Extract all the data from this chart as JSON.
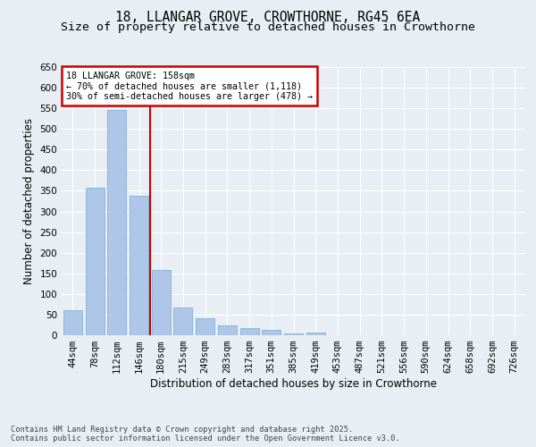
{
  "title_line1": "18, LLANGAR GROVE, CROWTHORNE, RG45 6EA",
  "title_line2": "Size of property relative to detached houses in Crowthorne",
  "xlabel": "Distribution of detached houses by size in Crowthorne",
  "ylabel": "Number of detached properties",
  "footer_line1": "Contains HM Land Registry data © Crown copyright and database right 2025.",
  "footer_line2": "Contains public sector information licensed under the Open Government Licence v3.0.",
  "bin_labels": [
    "44sqm",
    "78sqm",
    "112sqm",
    "146sqm",
    "180sqm",
    "215sqm",
    "249sqm",
    "283sqm",
    "317sqm",
    "351sqm",
    "385sqm",
    "419sqm",
    "453sqm",
    "487sqm",
    "521sqm",
    "556sqm",
    "590sqm",
    "624sqm",
    "658sqm",
    "692sqm",
    "726sqm"
  ],
  "bar_values": [
    60,
    357,
    545,
    338,
    158,
    68,
    42,
    24,
    18,
    14,
    5,
    6,
    0,
    0,
    0,
    0,
    0,
    0,
    0,
    0,
    0
  ],
  "bar_color": "#aec6e8",
  "bar_edge_color": "#7fb3d3",
  "property_size_idx": 3.5,
  "vline_color": "#cc0000",
  "annotation_title": "18 LLANGAR GROVE: 158sqm",
  "annotation_line2": "← 70% of detached houses are smaller (1,118)",
  "annotation_line3": "30% of semi-detached houses are larger (478) →",
  "annotation_box_color": "#cc0000",
  "annotation_bg": "#ffffff",
  "ylim": [
    0,
    650
  ],
  "yticks": [
    0,
    50,
    100,
    150,
    200,
    250,
    300,
    350,
    400,
    450,
    500,
    550,
    600,
    650
  ],
  "bg_color": "#e8eef4",
  "grid_color": "#ffffff",
  "title_fontsize": 10.5,
  "subtitle_fontsize": 9.5,
  "axis_label_fontsize": 8.5,
  "tick_fontsize": 7.5,
  "ylabel_fontsize": 8.5
}
